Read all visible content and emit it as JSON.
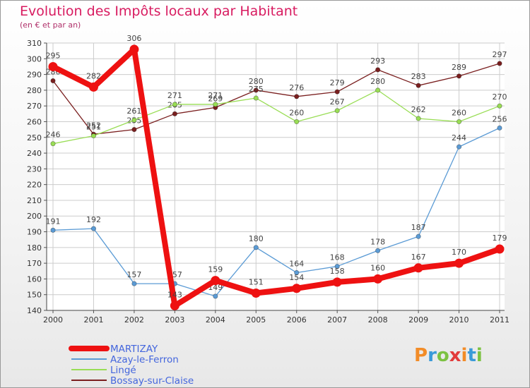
{
  "header": {
    "title": "Evolution des Impôts locaux par Habitant",
    "subtitle": "(en € et par an)"
  },
  "logo": {
    "text": "Proxiti"
  },
  "chart_data": {
    "type": "line",
    "title": "Evolution des Impôts locaux par Habitant",
    "subtitle": "(en € et par an)",
    "xlabel": "",
    "ylabel": "",
    "ylim": [
      140,
      310
    ],
    "ytick_step": 10,
    "grid": true,
    "legend_position": "bottom-left",
    "x": [
      "2000",
      "2001",
      "2002",
      "2003",
      "2004",
      "2005",
      "2006",
      "2007",
      "2008",
      "2009",
      "2010",
      "2011"
    ],
    "series": [
      {
        "name": "MARTIZAY",
        "color": "#ee1111",
        "values": [
          295,
          282,
          306,
          143,
          159,
          151,
          154,
          158,
          160,
          167,
          170,
          179
        ]
      },
      {
        "name": "Azay-le-Ferron",
        "color": "#5b9bd5",
        "values": [
          191,
          192,
          157,
          157,
          149,
          180,
          164,
          168,
          178,
          187,
          244,
          256
        ]
      },
      {
        "name": "Lingé",
        "color": "#99dd55",
        "values": [
          246,
          251,
          261,
          271,
          271,
          275,
          260,
          267,
          280,
          262,
          260,
          270
        ]
      },
      {
        "name": "Bossay-sur-Claise",
        "color": "#7a1f1f",
        "values": [
          286,
          252,
          255,
          265,
          269,
          280,
          276,
          279,
          293,
          283,
          289,
          297
        ]
      }
    ]
  }
}
